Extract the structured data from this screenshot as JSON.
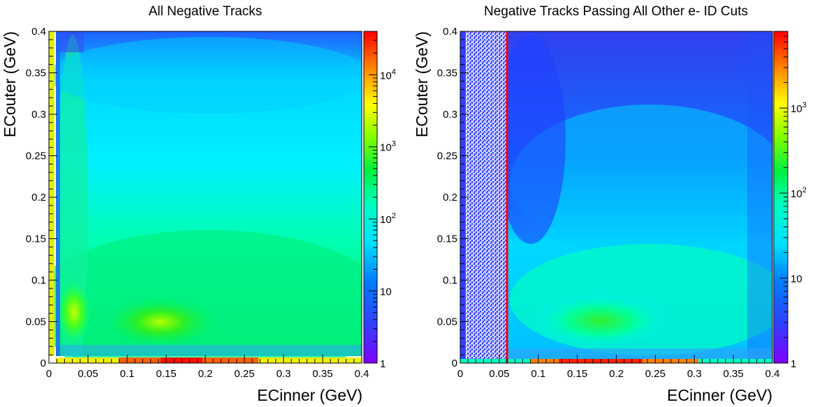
{
  "chart_data": [
    {
      "type": "heatmap",
      "title": "All Negative Tracks",
      "xlabel": "ECinner (GeV)",
      "ylabel": "ECouter (GeV)",
      "xlim": [
        0,
        0.4
      ],
      "ylim": [
        0,
        0.4
      ],
      "x_ticks": [
        "0",
        "0.05",
        "0.1",
        "0.15",
        "0.2",
        "0.25",
        "0.3",
        "0.35",
        "0.4"
      ],
      "y_ticks": [
        "0",
        "0.05",
        "0.1",
        "0.15",
        "0.2",
        "0.25",
        "0.3",
        "0.35",
        "0.4"
      ],
      "z_scale": "log",
      "zlim": [
        1,
        40000
      ],
      "z_ticks": [
        1,
        10,
        100,
        1000,
        10000
      ],
      "z_tick_labels": [
        "1",
        "10",
        "10^2",
        "10^3",
        "10^4"
      ],
      "density_features": [
        {
          "feature": "peak",
          "x": 0.03,
          "y": 0.06,
          "level": 300
        },
        {
          "feature": "peak",
          "x": 0.14,
          "y": 0.05,
          "level": 250
        },
        {
          "feature": "vertical band",
          "x": 0.03,
          "y_range": [
            0.02,
            0.4
          ],
          "level": 100
        },
        {
          "feature": "background",
          "level": 30
        }
      ]
    },
    {
      "type": "heatmap",
      "title": "Negative Tracks Passing All Other e- ID Cuts",
      "xlabel": "ECinner (GeV)",
      "ylabel": "ECouter (GeV)",
      "xlim": [
        0,
        0.4
      ],
      "ylim": [
        0,
        0.4
      ],
      "x_ticks": [
        "0",
        "0.05",
        "0.1",
        "0.15",
        "0.2",
        "0.25",
        "0.3",
        "0.35",
        "0.4"
      ],
      "y_ticks": [
        "0",
        "0.05",
        "0.1",
        "0.15",
        "0.2",
        "0.25",
        "0.3",
        "0.35",
        "0.4"
      ],
      "z_scale": "log",
      "zlim": [
        1,
        8000
      ],
      "z_ticks": [
        1,
        10,
        100,
        1000
      ],
      "z_tick_labels": [
        "1",
        "10",
        "10^2",
        "10^3"
      ],
      "cut_line": {
        "x": 0.06,
        "color": "#ff0000"
      },
      "density_features": [
        {
          "feature": "peak",
          "x": 0.16,
          "y": 0.05,
          "level": 150
        },
        {
          "feature": "sparse region",
          "x_range": [
            0,
            0.06
          ],
          "level": 2
        },
        {
          "feature": "background",
          "level": 10
        }
      ]
    }
  ],
  "colors": {
    "palette": [
      "#8000ff",
      "#4030ff",
      "#1050ff",
      "#0080ff",
      "#00c0ff",
      "#00ffff",
      "#00ffc0",
      "#00ff80",
      "#00f020",
      "#60ff00",
      "#c0ff00",
      "#ffff00",
      "#ffc000",
      "#ff8000",
      "#ff4000",
      "#ff0000"
    ],
    "cut_line": "#ff0000"
  }
}
